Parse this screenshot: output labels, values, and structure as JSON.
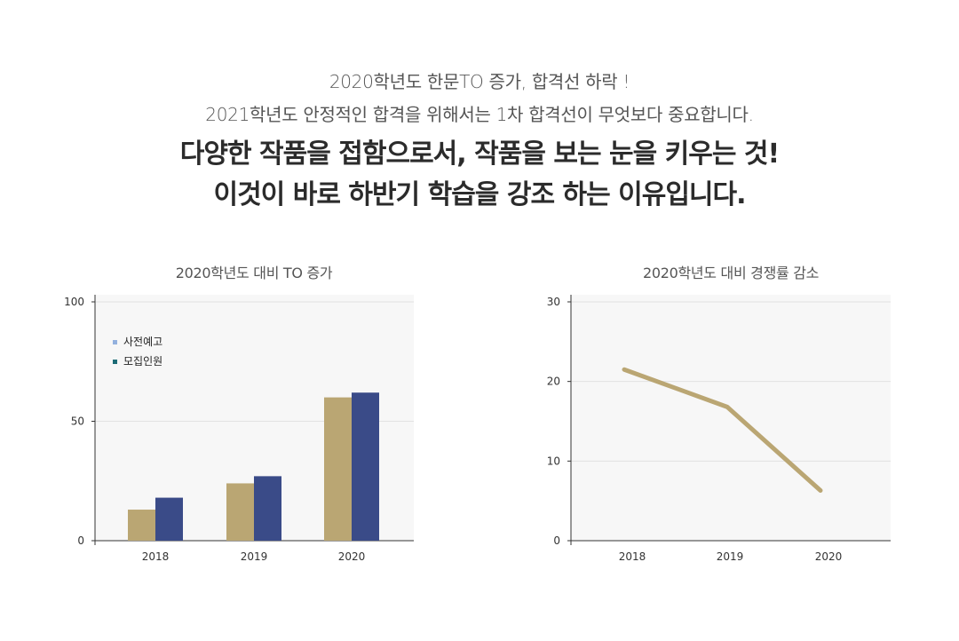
{
  "header": {
    "sub_line1": "2020학년도 한문TO 증가, 합격선 하락 !",
    "sub_line2": "2021학년도 안정적인 합격을 위해서는 1차 합격선이 무엇보다 중요합니다.",
    "headline1": "다양한 작품을 접함으로서, 작품을 보는 눈을 키우는 것!",
    "headline2": "이것이 바로 하반기 학습을 강조 하는 이유입니다."
  },
  "chart_data": [
    {
      "type": "bar",
      "title": "2020학년도 대비 TO 증가",
      "categories": [
        "2018",
        "2019",
        "2020"
      ],
      "series": [
        {
          "name": "사전예고",
          "values": [
            13,
            24,
            60
          ],
          "color": "#baa673",
          "legend_color": "#93b1de"
        },
        {
          "name": "모집인원",
          "values": [
            18,
            27,
            62
          ],
          "color": "#3a4b88",
          "legend_color": "#1d6b76"
        }
      ],
      "ylim": [
        0,
        100
      ],
      "yticks": [
        0,
        50,
        100
      ],
      "grid": true,
      "legend": "top-left",
      "plot_bg": "#f7f7f7"
    },
    {
      "type": "line",
      "title": "2020학년도 대비 경쟁률 감소",
      "categories": [
        "2018",
        "2019",
        "2020"
      ],
      "series": [
        {
          "values": [
            21.5,
            16.8,
            6.3
          ],
          "color": "#baa673"
        }
      ],
      "ylim": [
        0,
        30
      ],
      "yticks": [
        0,
        10,
        20,
        30
      ],
      "grid": true,
      "plot_bg": "#f7f7f7"
    }
  ]
}
